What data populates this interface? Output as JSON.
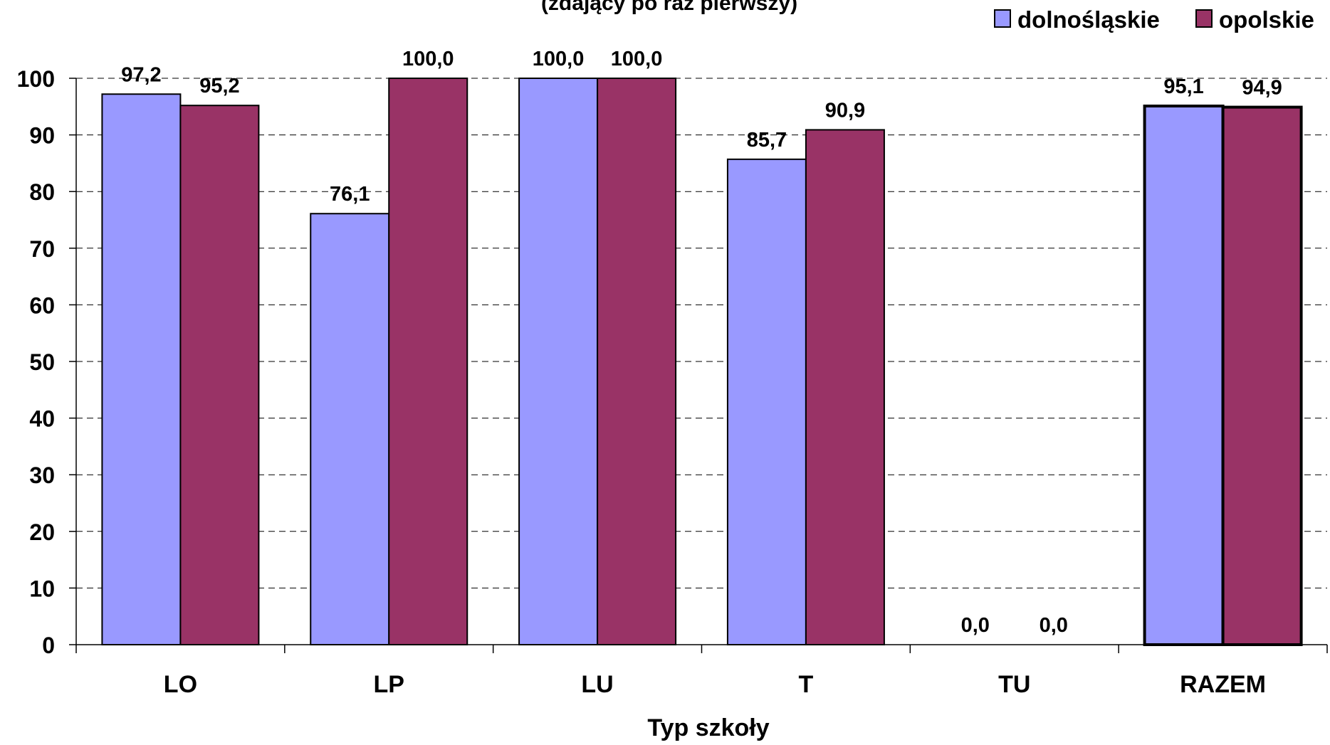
{
  "chart_data": {
    "type": "bar",
    "title": "(zdający po raz pierwszy)",
    "xlabel": "Typ szkoły",
    "ylabel": "",
    "categories": [
      "LO",
      "LP",
      "LU",
      "T",
      "TU",
      "RAZEM"
    ],
    "series": [
      {
        "name": "dolnośląskie",
        "color": "#9999ff",
        "values": [
          97.2,
          76.1,
          100.0,
          85.7,
          0.0,
          95.1
        ],
        "labels": [
          "97,2",
          "76,1",
          "100,0",
          "85,7",
          "0,0",
          "95,1"
        ]
      },
      {
        "name": "opolskie",
        "color": "#993366",
        "values": [
          95.2,
          100.0,
          100.0,
          90.9,
          0.0,
          94.9
        ],
        "labels": [
          "95,2",
          "100,0",
          "100,0",
          "90,9",
          "0,0",
          "94,9"
        ]
      }
    ],
    "ylim": [
      0,
      100
    ],
    "yticks": [
      0,
      10,
      20,
      30,
      40,
      50,
      60,
      70,
      80,
      90,
      100
    ],
    "grid": true,
    "grid_style": "dashed",
    "legend_position": "top-right",
    "highlighted_category": "RAZEM"
  }
}
